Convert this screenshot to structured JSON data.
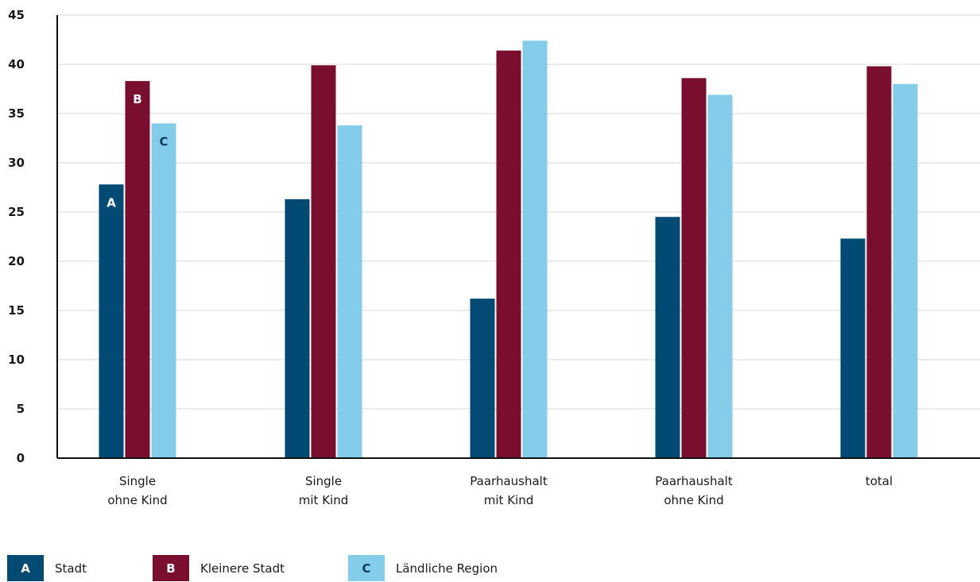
{
  "chart_data": {
    "type": "bar",
    "categories": [
      [
        "Single",
        "ohne Kind"
      ],
      [
        "Single",
        "mit Kind"
      ],
      [
        "Paarhaushalt",
        "mit Kind"
      ],
      [
        "Paarhaushalt",
        "ohne Kind"
      ],
      [
        "total"
      ]
    ],
    "series": [
      {
        "key": "A",
        "name": "Stadt",
        "color": "#004a73",
        "values": [
          27.8,
          26.3,
          16.2,
          24.5,
          22.3
        ]
      },
      {
        "key": "B",
        "name": "Kleinere Stadt",
        "color": "#7a0e2f",
        "values": [
          38.3,
          39.9,
          41.4,
          38.6,
          39.8
        ]
      },
      {
        "key": "C",
        "name": "Ländliche Region",
        "color": "#84cdea",
        "values": [
          34.0,
          33.8,
          42.4,
          36.9,
          38.0
        ]
      }
    ],
    "yticks": [
      0,
      5,
      10,
      15,
      20,
      25,
      30,
      35,
      40,
      45
    ],
    "ylim": [
      0,
      45
    ],
    "title": "",
    "xlabel": "",
    "ylabel": "",
    "grid": true,
    "legend_position": "bottom-left"
  }
}
